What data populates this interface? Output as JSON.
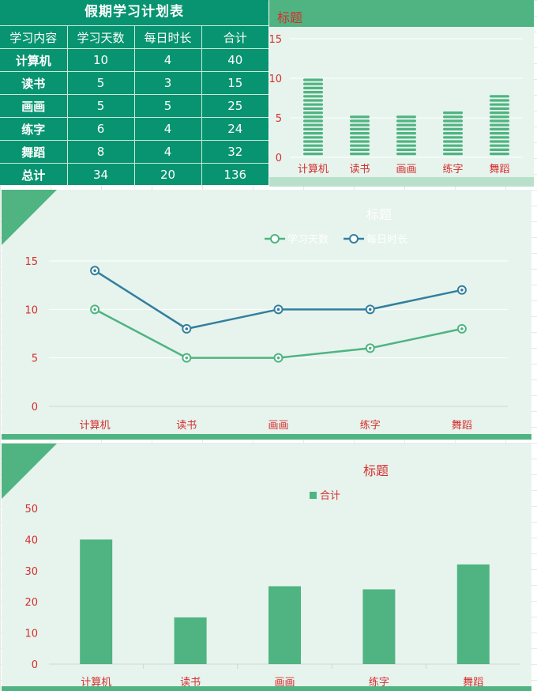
{
  "table": {
    "title": "假期学习计划表",
    "headers": [
      "学习内容",
      "学习天数",
      "每日时长",
      "合计"
    ],
    "rows": [
      [
        "计算机",
        "10",
        "4",
        "40"
      ],
      [
        "读书",
        "5",
        "3",
        "15"
      ],
      [
        "画画",
        "5",
        "5",
        "25"
      ],
      [
        "练字",
        "6",
        "4",
        "24"
      ],
      [
        "舞蹈",
        "8",
        "4",
        "32"
      ],
      [
        "总计",
        "34",
        "20",
        "136"
      ]
    ]
  },
  "colors": {
    "table_bg": "#089470",
    "accent_green": "#4fb481",
    "line_blue": "#347e9e",
    "label_red": "#d62e2e",
    "panel_bg": "#e6f4ed"
  },
  "chart_data": [
    {
      "type": "bar",
      "title": "标题",
      "categories": [
        "计算机",
        "读书",
        "画画",
        "练字",
        "舞蹈"
      ],
      "values": [
        10,
        5,
        5,
        6,
        8
      ],
      "ylim": [
        0,
        15
      ],
      "yticks": [
        0,
        5,
        10,
        15
      ],
      "grid": true,
      "legend": "none"
    },
    {
      "type": "line",
      "title": "标题",
      "categories": [
        "计算机",
        "读书",
        "画画",
        "练字",
        "舞蹈"
      ],
      "series": [
        {
          "name": "学习天数",
          "values": [
            10,
            5,
            5,
            6,
            8
          ],
          "color": "#4fb481"
        },
        {
          "name": "每日时长",
          "values": [
            14,
            8,
            10,
            10,
            12
          ],
          "color": "#347e9e"
        }
      ],
      "ylim": [
        0,
        15
      ],
      "yticks": [
        0,
        5,
        10,
        15
      ],
      "grid": true,
      "legend": "top"
    },
    {
      "type": "bar",
      "title": "标题",
      "categories": [
        "计算机",
        "读书",
        "画画",
        "练字",
        "舞蹈"
      ],
      "series": [
        {
          "name": "合计",
          "values": [
            40,
            15,
            25,
            24,
            32
          ],
          "color": "#4fb481"
        }
      ],
      "ylim": [
        0,
        50
      ],
      "yticks": [
        0,
        10,
        20,
        30,
        40,
        50
      ],
      "grid": false,
      "legend": "top"
    }
  ]
}
